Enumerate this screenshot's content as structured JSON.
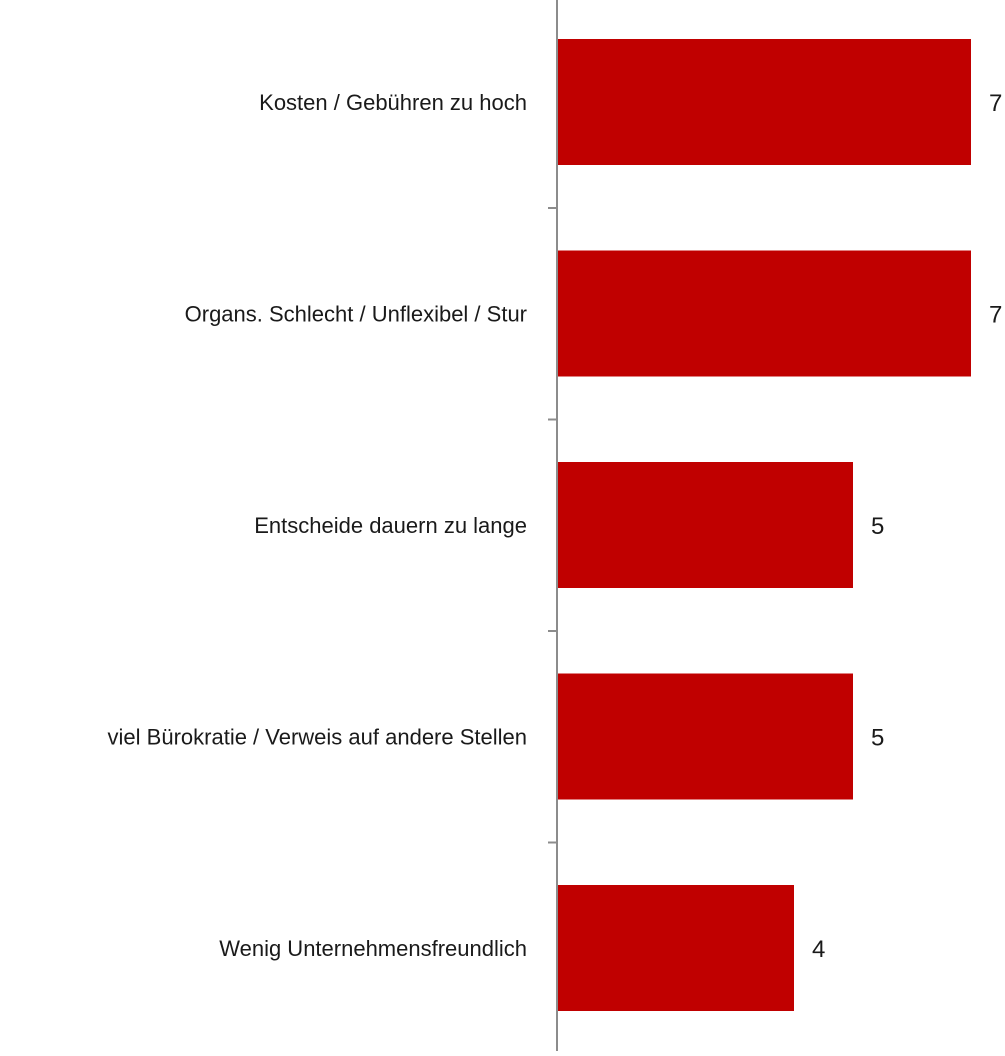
{
  "chart_data": {
    "type": "bar",
    "orientation": "horizontal",
    "categories": [
      "Kosten / Gebühren zu hoch",
      "Organs. Schlecht / Unflexibel / Stur",
      "Entscheide dauern zu lange",
      "viel Bürokratie / Verweis auf andere Stellen",
      "Wenig Unternehmensfreundlich"
    ],
    "values": [
      7,
      7,
      5,
      5,
      4
    ],
    "data_labels": [
      "7",
      "7",
      "5",
      "5",
      "4"
    ],
    "title": "",
    "xlabel": "",
    "ylabel": "",
    "xlim": [
      0,
      7
    ],
    "grid": false,
    "legend": "none",
    "colors": {
      "bar": "#c00000",
      "axis": "#8c8c8c",
      "text": "#1a1a1a"
    }
  }
}
